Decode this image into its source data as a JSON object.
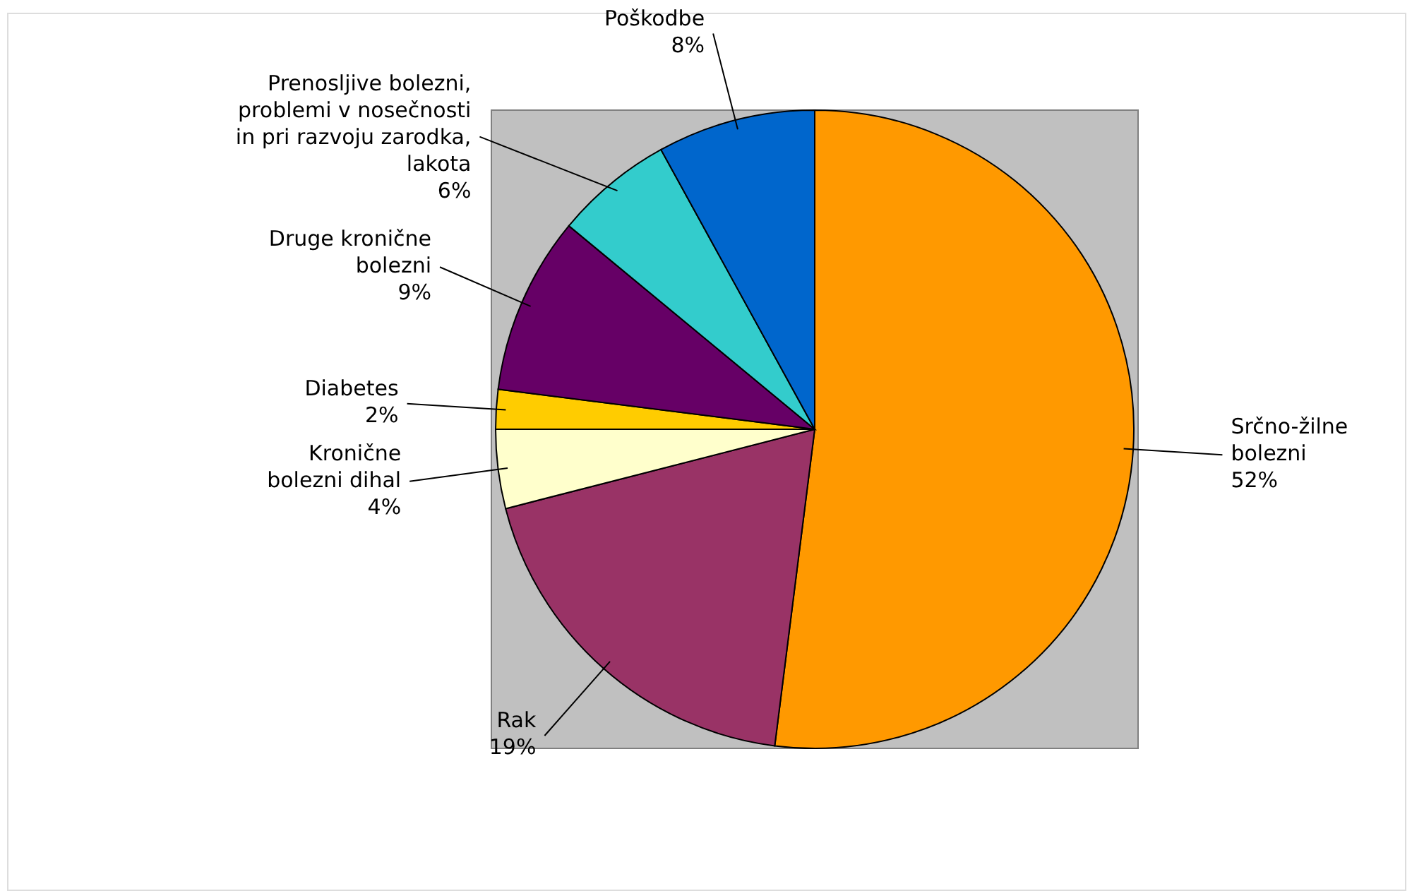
{
  "chart_data": {
    "type": "pie",
    "categories": [
      "Srčno-žilne bolezni",
      "Rak",
      "Kronične bolezni dihal",
      "Diabetes",
      "Druge kronične bolezni",
      "Prenosljive bolezni, problemi v nosečnosti in pri razvoju zarodka, lakota",
      "Poškodbe"
    ],
    "values": [
      52,
      19,
      4,
      2,
      9,
      6,
      8
    ],
    "colors": [
      "#ff9900",
      "#993366",
      "#ffffcc",
      "#ffcc00",
      "#660066",
      "#33cccc",
      "#0066cc"
    ],
    "value_labels": [
      "52%",
      "19%",
      "4%",
      "2%",
      "9%",
      "6%",
      "8%"
    ],
    "legend": false
  }
}
